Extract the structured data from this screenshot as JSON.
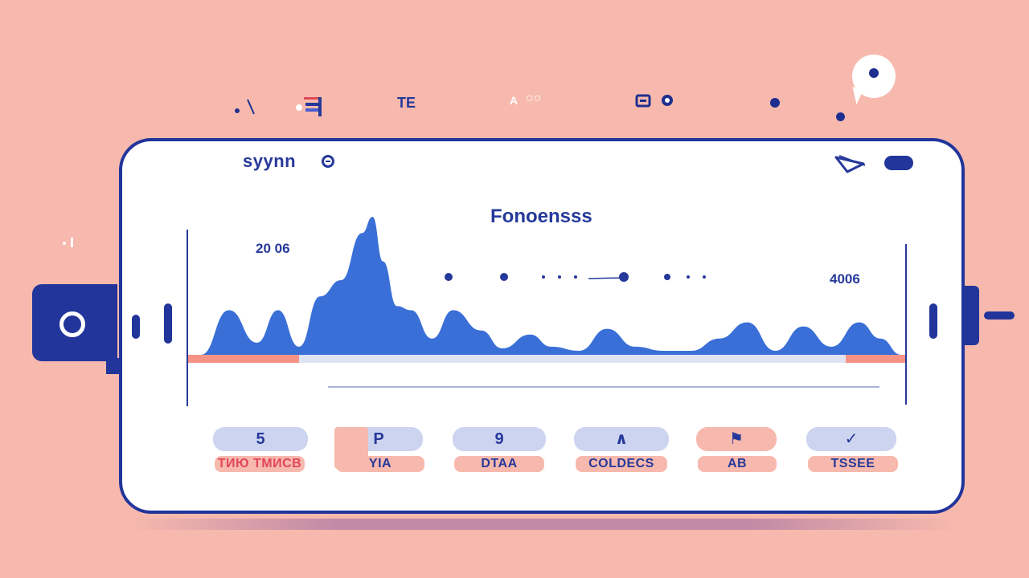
{
  "status_bar": {
    "items": [
      "TE",
      "A",
      "○○"
    ]
  },
  "app": {
    "brand": "syynn",
    "chart_title": "Fonoensss"
  },
  "chart_data": {
    "type": "area",
    "title": "Fonoensss",
    "left_label": "20 06",
    "right_label": "4006",
    "series": [
      {
        "x": [
          0,
          0.04,
          0.08,
          0.11,
          0.14,
          0.17,
          0.2,
          0.23,
          0.245,
          0.26,
          0.28,
          0.3,
          0.33,
          0.36,
          0.4,
          0.43,
          0.47,
          0.5,
          0.54,
          0.58,
          0.62,
          0.66,
          0.7,
          0.74,
          0.78,
          0.82,
          0.86,
          0.9,
          0.94,
          0.97,
          1.0
        ],
        "y": [
          0,
          55,
          15,
          55,
          10,
          72,
          92,
          150,
          170,
          115,
          60,
          55,
          20,
          55,
          30,
          8,
          25,
          10,
          5,
          32,
          10,
          5,
          5,
          20,
          40,
          5,
          35,
          10,
          40,
          20,
          0
        ]
      }
    ],
    "markers": [
      "•",
      "•",
      "•",
      "•",
      "•"
    ]
  },
  "actions": [
    {
      "icon": "5",
      "label": "ТИЮ ТМИСВ"
    },
    {
      "icon": "P",
      "label": "YIA"
    },
    {
      "icon": "9",
      "label": "DTAA"
    },
    {
      "icon": "∧",
      "label": "COLDECS"
    },
    {
      "icon": "⚑",
      "label": "AB"
    },
    {
      "icon": "✓",
      "label": "TSSEE"
    }
  ],
  "colors": {
    "background": "#f7b9ad",
    "accent": "#22359a",
    "chart_fill": "#3a6fd8",
    "bar_salmon": "#f59486"
  }
}
